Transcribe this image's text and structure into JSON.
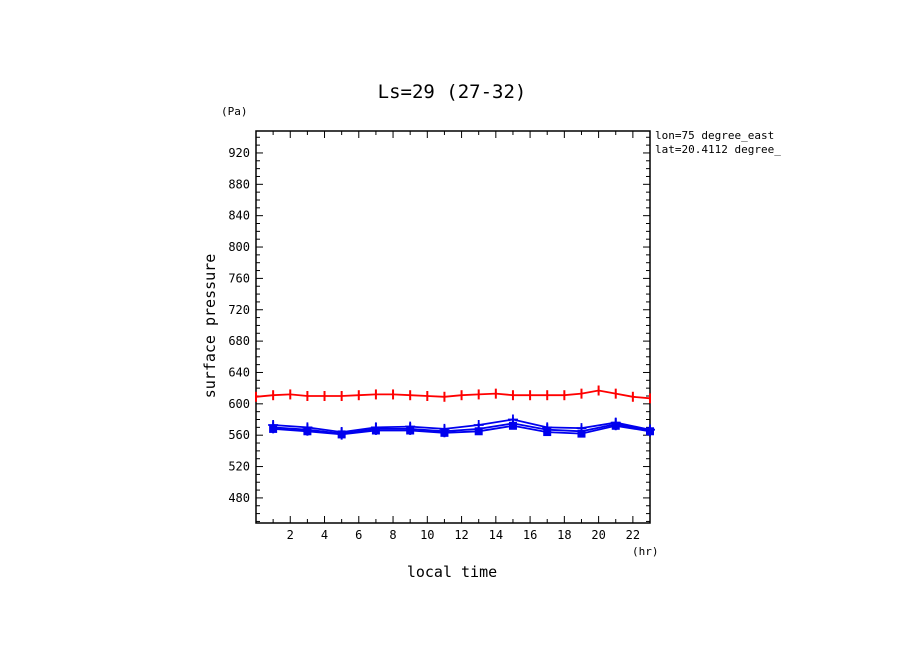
{
  "chart_data": {
    "type": "line",
    "title": "Ls=29 (27-32)",
    "xlabel": "local time",
    "ylabel": "surface pressure",
    "x_unit": "(hr)",
    "y_unit": "(Pa)",
    "annotations": [
      "lon=75 degree_east",
      "lat=20.4112 degree_"
    ],
    "xlim": [
      0,
      23
    ],
    "ylim": [
      448,
      948
    ],
    "x_ticks": [
      2,
      4,
      6,
      8,
      10,
      12,
      14,
      16,
      18,
      20,
      22
    ],
    "y_ticks": [
      480,
      520,
      560,
      600,
      640,
      680,
      720,
      760,
      800,
      840,
      880,
      920
    ],
    "grid": false,
    "series": [
      {
        "color": "#ff0000",
        "x": [
          0,
          1,
          2,
          3,
          4,
          5,
          6,
          7,
          8,
          9,
          10,
          11,
          12,
          13,
          14,
          15,
          16,
          17,
          18,
          19,
          20,
          21,
          22,
          23
        ],
        "y": [
          609,
          611,
          612,
          610,
          610,
          610,
          611,
          612,
          612,
          611,
          610,
          609,
          611,
          612,
          613,
          611,
          611,
          611,
          611,
          613,
          617,
          613,
          609,
          607
        ]
      },
      {
        "color": "#0000ee",
        "x": [
          1,
          3,
          5,
          7,
          9,
          11,
          13,
          15,
          17,
          19,
          21,
          23
        ],
        "y": [
          573,
          570,
          564,
          570,
          571,
          568,
          573,
          580,
          570,
          569,
          576,
          567
        ]
      },
      {
        "color": "#0000ee",
        "x": [
          1,
          3,
          5,
          7,
          9,
          11,
          13,
          15,
          17,
          19,
          21,
          23
        ],
        "y": [
          570,
          567,
          562,
          568,
          568,
          565,
          568,
          575,
          567,
          565,
          574,
          566
        ]
      },
      {
        "color": "#0000ee",
        "x": [
          1,
          3,
          5,
          7,
          9,
          11,
          13,
          15,
          17,
          19,
          21,
          23
        ],
        "y": [
          568,
          565,
          561,
          566,
          566,
          563,
          565,
          572,
          564,
          562,
          572,
          565
        ]
      }
    ]
  }
}
